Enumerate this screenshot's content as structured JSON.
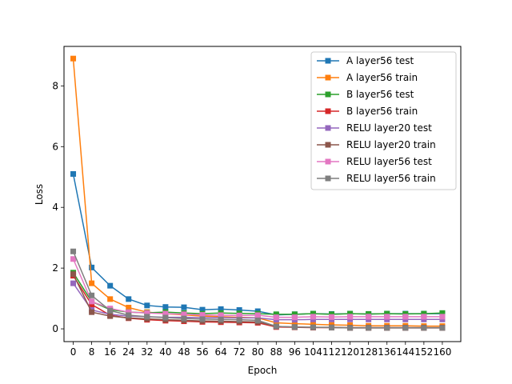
{
  "chart_data": {
    "type": "line",
    "title": "",
    "xlabel": "Epoch",
    "ylabel": "Loss",
    "xlim": [
      -4,
      168
    ],
    "ylim": [
      -0.42,
      9.3
    ],
    "xticks": [
      0,
      8,
      16,
      24,
      32,
      40,
      48,
      56,
      64,
      72,
      80,
      88,
      96,
      104,
      112,
      120,
      128,
      136,
      144,
      152,
      160
    ],
    "yticks": [
      0,
      2,
      4,
      6,
      8
    ],
    "grid": false,
    "legend_position": "upper-right",
    "x": [
      0,
      8,
      16,
      24,
      32,
      40,
      48,
      56,
      64,
      72,
      80,
      88,
      96,
      104,
      112,
      120,
      128,
      136,
      144,
      152,
      160
    ],
    "series": [
      {
        "name": "A layer56 test",
        "color": "#1f77b4",
        "values": [
          5.1,
          2.02,
          1.42,
          0.98,
          0.77,
          0.72,
          0.71,
          0.63,
          0.65,
          0.62,
          0.58,
          0.46,
          0.48,
          0.5,
          0.49,
          0.5,
          0.49,
          0.5,
          0.5,
          0.5,
          0.5
        ]
      },
      {
        "name": "A layer56 train",
        "color": "#ff7f0e",
        "values": [
          8.9,
          1.5,
          0.98,
          0.7,
          0.55,
          0.5,
          0.46,
          0.42,
          0.4,
          0.38,
          0.36,
          0.2,
          0.17,
          0.15,
          0.13,
          0.12,
          0.1,
          0.1,
          0.1,
          0.09,
          0.09
        ]
      },
      {
        "name": "B layer56 test",
        "color": "#2ca02c",
        "values": [
          1.85,
          0.9,
          0.63,
          0.55,
          0.53,
          0.55,
          0.52,
          0.5,
          0.52,
          0.51,
          0.5,
          0.48,
          0.48,
          0.5,
          0.48,
          0.5,
          0.49,
          0.5,
          0.49,
          0.5,
          0.52
        ]
      },
      {
        "name": "B layer56 train",
        "color": "#d62728",
        "values": [
          1.75,
          0.8,
          0.45,
          0.35,
          0.3,
          0.27,
          0.25,
          0.23,
          0.22,
          0.21,
          0.2,
          0.06,
          0.05,
          0.04,
          0.04,
          0.03,
          0.03,
          0.03,
          0.03,
          0.03,
          0.03
        ]
      },
      {
        "name": "RELU layer20 test",
        "color": "#9467bd",
        "values": [
          1.5,
          0.62,
          0.48,
          0.42,
          0.4,
          0.38,
          0.38,
          0.37,
          0.37,
          0.36,
          0.36,
          0.3,
          0.3,
          0.31,
          0.31,
          0.31,
          0.31,
          0.31,
          0.31,
          0.31,
          0.31
        ]
      },
      {
        "name": "RELU layer20 train",
        "color": "#8c564b",
        "values": [
          1.8,
          0.55,
          0.42,
          0.36,
          0.33,
          0.3,
          0.28,
          0.26,
          0.25,
          0.24,
          0.23,
          0.08,
          0.06,
          0.05,
          0.05,
          0.04,
          0.04,
          0.04,
          0.04,
          0.04,
          0.04
        ]
      },
      {
        "name": "RELU layer56 test",
        "color": "#e377c2",
        "values": [
          2.3,
          0.9,
          0.67,
          0.55,
          0.52,
          0.5,
          0.48,
          0.46,
          0.45,
          0.44,
          0.45,
          0.38,
          0.38,
          0.4,
          0.39,
          0.4,
          0.4,
          0.4,
          0.4,
          0.4,
          0.4
        ]
      },
      {
        "name": "RELU layer56 train",
        "color": "#7f7f7f",
        "values": [
          2.55,
          1.1,
          0.6,
          0.45,
          0.4,
          0.37,
          0.34,
          0.32,
          0.31,
          0.3,
          0.28,
          0.08,
          0.06,
          0.05,
          0.04,
          0.03,
          0.03,
          0.03,
          0.03,
          0.03,
          0.03
        ]
      }
    ]
  }
}
